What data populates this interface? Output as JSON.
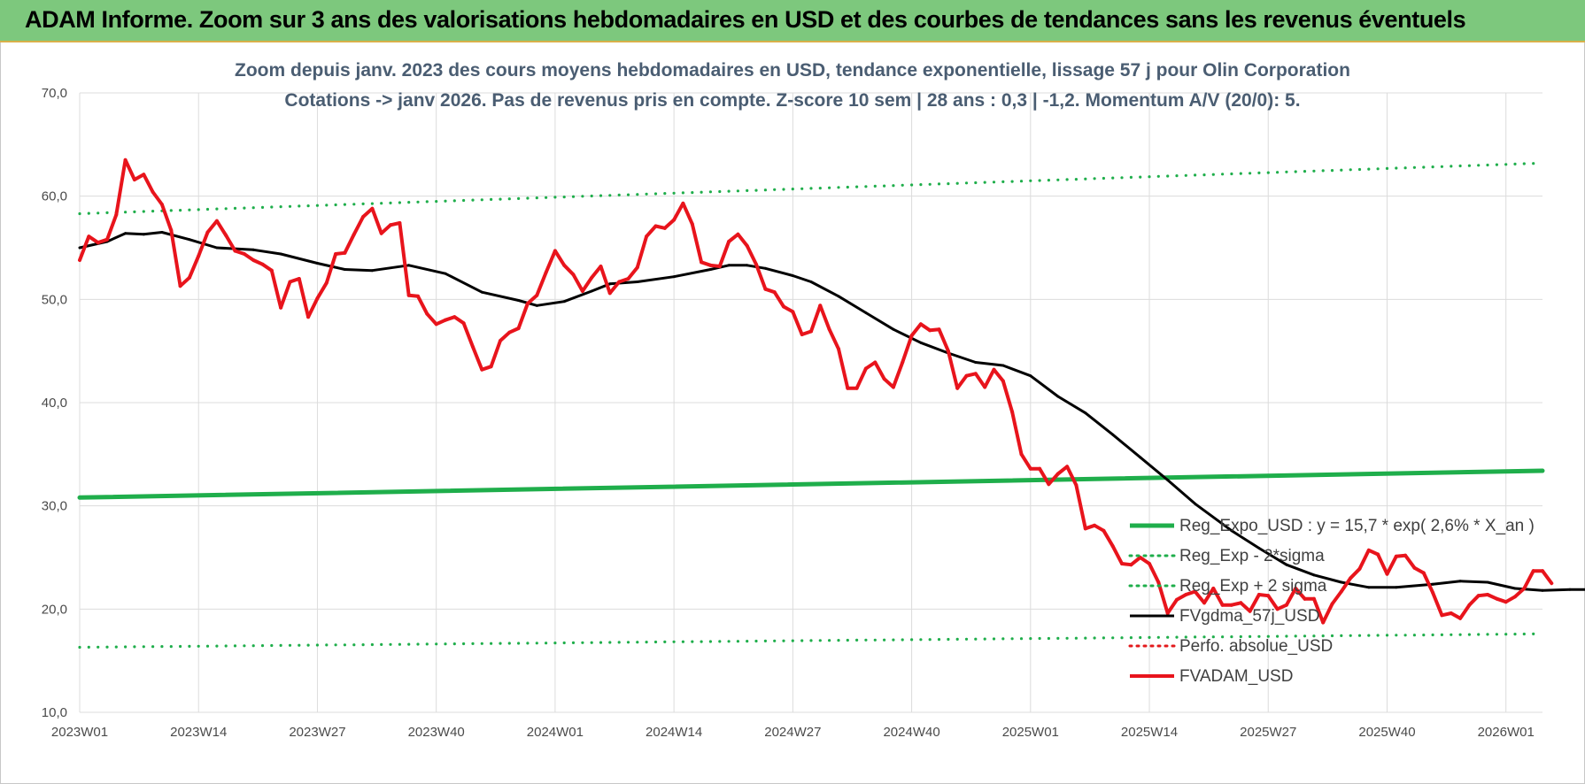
{
  "header": {
    "title": "ADAM Informe. Zoom sur 3 ans des valorisations hebdomadaires en USD et des courbes de tendances sans les revenus éventuels"
  },
  "chart_data": {
    "type": "line",
    "title_line1": "Zoom depuis janv. 2023 des cours moyens hebdomadaires en USD, tendance exponentielle, lissage 57 j pour Olin Corporation",
    "title_line2": "Cotations -> janv 2026. Pas de revenus pris en compte. Z-score 10 sem | 28 ans : 0,3 | -1,2. Momentum A/V (20/0): 5.",
    "ylim": [
      10,
      70
    ],
    "yticks": [
      "10,0",
      "20,0",
      "30,0",
      "40,0",
      "50,0",
      "60,0",
      "70,0"
    ],
    "xticks": [
      {
        "index": 0,
        "label": "2023W01"
      },
      {
        "index": 13,
        "label": "2023W14"
      },
      {
        "index": 26,
        "label": "2023W27"
      },
      {
        "index": 39,
        "label": "2023W40"
      },
      {
        "index": 52,
        "label": "2024W01"
      },
      {
        "index": 65,
        "label": "2024W14"
      },
      {
        "index": 78,
        "label": "2024W27"
      },
      {
        "index": 91,
        "label": "2024W40"
      },
      {
        "index": 104,
        "label": "2025W01"
      },
      {
        "index": 117,
        "label": "2025W14"
      },
      {
        "index": 130,
        "label": "2025W27"
      },
      {
        "index": 143,
        "label": "2025W40"
      },
      {
        "index": 156,
        "label": "2026W01"
      }
    ],
    "x_count": 161,
    "grid": true,
    "legend_position": "bottom-right",
    "series": [
      {
        "name": "Reg_Expo_USD : y = 15,7 * exp( 2,6% *  X_an )",
        "style": "solid",
        "color": "#1fae4b",
        "width": 5,
        "points": [
          [
            0,
            30.8
          ],
          [
            160,
            33.4
          ]
        ]
      },
      {
        "name": "Reg_Exp - 2*sigma",
        "style": "dotted",
        "color": "#1fae4b",
        "width": 3,
        "points": [
          [
            0,
            16.3
          ],
          [
            160,
            17.6
          ]
        ]
      },
      {
        "name": "Reg_Exp + 2 sigma",
        "style": "dotted",
        "color": "#1fae4b",
        "width": 3,
        "points": [
          [
            0,
            58.3
          ],
          [
            160,
            63.2
          ]
        ]
      },
      {
        "name": "FVgdma_57j_USD",
        "style": "solid",
        "color": "#000000",
        "width": 3,
        "points": [
          [
            0,
            55.0
          ],
          [
            3,
            55.6
          ],
          [
            5,
            56.4
          ],
          [
            7,
            56.3
          ],
          [
            9,
            56.5
          ],
          [
            12,
            55.8
          ],
          [
            15,
            55.0
          ],
          [
            19,
            54.8
          ],
          [
            22,
            54.4
          ],
          [
            26,
            53.5
          ],
          [
            29,
            52.9
          ],
          [
            32,
            52.8
          ],
          [
            36,
            53.3
          ],
          [
            40,
            52.5
          ],
          [
            44,
            50.7
          ],
          [
            48,
            49.9
          ],
          [
            50,
            49.4
          ],
          [
            53,
            49.8
          ],
          [
            56,
            50.8
          ],
          [
            58,
            51.5
          ],
          [
            61,
            51.7
          ],
          [
            65,
            52.2
          ],
          [
            69,
            52.9
          ],
          [
            71,
            53.3
          ],
          [
            73,
            53.3
          ],
          [
            75,
            53.0
          ],
          [
            78,
            52.3
          ],
          [
            80,
            51.7
          ],
          [
            83,
            50.3
          ],
          [
            86,
            48.7
          ],
          [
            89,
            47.1
          ],
          [
            92,
            45.8
          ],
          [
            95,
            44.8
          ],
          [
            98,
            43.9
          ],
          [
            101,
            43.6
          ],
          [
            104,
            42.6
          ],
          [
            107,
            40.6
          ],
          [
            110,
            39.0
          ],
          [
            113,
            36.9
          ],
          [
            116,
            34.7
          ],
          [
            119,
            32.5
          ],
          [
            122,
            30.2
          ],
          [
            126,
            27.6
          ],
          [
            129,
            25.9
          ],
          [
            132,
            24.3
          ],
          [
            135,
            23.3
          ],
          [
            138,
            22.6
          ],
          [
            141,
            22.1
          ],
          [
            144,
            22.1
          ],
          [
            148,
            22.4
          ],
          [
            151,
            22.7
          ],
          [
            154,
            22.6
          ],
          [
            157,
            22.0
          ],
          [
            160,
            21.8
          ],
          [
            163,
            21.9
          ],
          [
            166,
            21.9
          ],
          [
            168,
            22.0
          ],
          [
            170,
            22.3
          ],
          [
            172,
            22.5
          ],
          [
            174,
            22.5
          ]
        ]
      },
      {
        "name": "Perfo. absolue_USD",
        "style": "dotted",
        "color": "#e31a1c",
        "width": 2,
        "points": []
      },
      {
        "name": "FVADAM_USD",
        "style": "solid",
        "color": "#e8141c",
        "width": 4,
        "points": [
          [
            0,
            53.8
          ],
          [
            1,
            56.1
          ],
          [
            2,
            55.5
          ],
          [
            3,
            55.8
          ],
          [
            4,
            58.2
          ],
          [
            5,
            63.5
          ],
          [
            6,
            61.6
          ],
          [
            7,
            62.1
          ],
          [
            8,
            60.4
          ],
          [
            9,
            59.2
          ],
          [
            10,
            56.7
          ],
          [
            11,
            51.3
          ],
          [
            12,
            52.1
          ],
          [
            13,
            54.2
          ],
          [
            14,
            56.5
          ],
          [
            15,
            57.6
          ],
          [
            16,
            56.2
          ],
          [
            17,
            54.7
          ],
          [
            18,
            54.4
          ],
          [
            19,
            53.8
          ],
          [
            20,
            53.4
          ],
          [
            21,
            52.8
          ],
          [
            22,
            49.2
          ],
          [
            23,
            51.7
          ],
          [
            24,
            52.0
          ],
          [
            25,
            48.3
          ],
          [
            26,
            50.1
          ],
          [
            27,
            51.6
          ],
          [
            28,
            54.4
          ],
          [
            29,
            54.5
          ],
          [
            30,
            56.3
          ],
          [
            31,
            58.0
          ],
          [
            32,
            58.8
          ],
          [
            33,
            56.4
          ],
          [
            34,
            57.2
          ],
          [
            35,
            57.4
          ],
          [
            36,
            50.4
          ],
          [
            37,
            50.3
          ],
          [
            38,
            48.6
          ],
          [
            39,
            47.6
          ],
          [
            40,
            48.0
          ],
          [
            41,
            48.3
          ],
          [
            42,
            47.7
          ],
          [
            43,
            45.4
          ],
          [
            44,
            43.2
          ],
          [
            45,
            43.5
          ],
          [
            46,
            46.0
          ],
          [
            47,
            46.8
          ],
          [
            48,
            47.2
          ],
          [
            49,
            49.6
          ],
          [
            50,
            50.4
          ],
          [
            51,
            52.6
          ],
          [
            52,
            54.7
          ],
          [
            53,
            53.3
          ],
          [
            54,
            52.4
          ],
          [
            55,
            50.8
          ],
          [
            56,
            52.1
          ],
          [
            57,
            53.2
          ],
          [
            58,
            50.6
          ],
          [
            59,
            51.7
          ],
          [
            60,
            52.0
          ],
          [
            61,
            53.1
          ],
          [
            62,
            56.1
          ],
          [
            63,
            57.1
          ],
          [
            64,
            56.9
          ],
          [
            65,
            57.7
          ],
          [
            66,
            59.3
          ],
          [
            67,
            57.3
          ],
          [
            68,
            53.6
          ],
          [
            69,
            53.3
          ],
          [
            70,
            53.2
          ],
          [
            71,
            55.6
          ],
          [
            72,
            56.3
          ],
          [
            73,
            55.2
          ],
          [
            74,
            53.4
          ],
          [
            75,
            51.0
          ],
          [
            76,
            50.7
          ],
          [
            77,
            49.3
          ],
          [
            78,
            48.8
          ],
          [
            79,
            46.6
          ],
          [
            80,
            46.9
          ],
          [
            81,
            49.4
          ],
          [
            82,
            47.1
          ],
          [
            83,
            45.2
          ],
          [
            84,
            41.4
          ],
          [
            85,
            41.4
          ],
          [
            86,
            43.3
          ],
          [
            87,
            43.9
          ],
          [
            88,
            42.3
          ],
          [
            89,
            41.5
          ],
          [
            90,
            43.9
          ],
          [
            91,
            46.5
          ],
          [
            92,
            47.6
          ],
          [
            93,
            47.0
          ],
          [
            94,
            47.1
          ],
          [
            95,
            45.0
          ],
          [
            96,
            41.4
          ],
          [
            97,
            42.6
          ],
          [
            98,
            42.8
          ],
          [
            99,
            41.5
          ],
          [
            100,
            43.2
          ],
          [
            101,
            42.1
          ],
          [
            102,
            39.1
          ],
          [
            103,
            35.0
          ],
          [
            104,
            33.6
          ],
          [
            105,
            33.6
          ],
          [
            106,
            32.1
          ],
          [
            107,
            33.1
          ],
          [
            108,
            33.8
          ],
          [
            109,
            32.0
          ],
          [
            110,
            27.8
          ],
          [
            111,
            28.1
          ],
          [
            112,
            27.6
          ],
          [
            113,
            26.1
          ],
          [
            114,
            24.4
          ],
          [
            115,
            24.3
          ],
          [
            116,
            25.0
          ],
          [
            117,
            24.4
          ],
          [
            118,
            22.6
          ],
          [
            119,
            19.6
          ],
          [
            120,
            20.9
          ],
          [
            121,
            21.4
          ],
          [
            122,
            21.7
          ],
          [
            123,
            20.6
          ],
          [
            124,
            22.0
          ],
          [
            125,
            20.4
          ],
          [
            126,
            20.4
          ],
          [
            127,
            20.6
          ],
          [
            128,
            19.8
          ],
          [
            129,
            21.4
          ],
          [
            130,
            21.3
          ],
          [
            131,
            20.0
          ],
          [
            132,
            20.4
          ],
          [
            133,
            22.0
          ],
          [
            134,
            21.0
          ],
          [
            135,
            21.0
          ],
          [
            136,
            18.7
          ],
          [
            137,
            20.5
          ],
          [
            138,
            21.7
          ],
          [
            139,
            23.0
          ],
          [
            140,
            23.9
          ],
          [
            141,
            25.7
          ],
          [
            142,
            25.3
          ],
          [
            143,
            23.4
          ],
          [
            144,
            25.1
          ],
          [
            145,
            25.2
          ],
          [
            146,
            24.0
          ],
          [
            147,
            23.5
          ],
          [
            148,
            21.6
          ],
          [
            149,
            19.4
          ],
          [
            150,
            19.6
          ],
          [
            151,
            19.1
          ],
          [
            152,
            20.4
          ],
          [
            153,
            21.3
          ],
          [
            154,
            21.4
          ],
          [
            155,
            21.0
          ],
          [
            156,
            20.7
          ],
          [
            157,
            21.2
          ],
          [
            158,
            22.0
          ],
          [
            159,
            23.7
          ],
          [
            160,
            23.7
          ],
          [
            161,
            22.5
          ]
        ]
      }
    ]
  }
}
